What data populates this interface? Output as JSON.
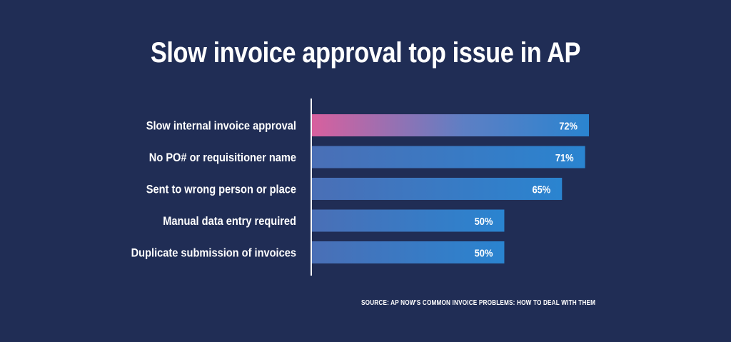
{
  "title": "Slow invoice approval top issue in AP",
  "source": "SOURCE:   AP NOW'S COMMON INVOICE PROBLEMS: HOW TO DEAL WITH THEM",
  "colors": {
    "background": "#202d55",
    "bar_start": "#4a6fb6",
    "bar_end": "#2a84d0",
    "highlight_start": "#d8609e",
    "highlight_end": "#5d7fc4"
  },
  "chart_data": {
    "type": "bar",
    "orientation": "horizontal",
    "categories": [
      "Slow internal invoice approval",
      "No PO# or requisitioner name",
      "Sent to wrong person or place",
      "Manual data entry required",
      "Duplicate submission of invoices"
    ],
    "values": [
      72,
      71,
      65,
      50,
      50
    ],
    "value_labels": [
      "72%",
      "71%",
      "65%",
      "50%",
      "50%"
    ],
    "highlight_index": 0,
    "xlim": [
      0,
      72
    ],
    "grid": false
  }
}
